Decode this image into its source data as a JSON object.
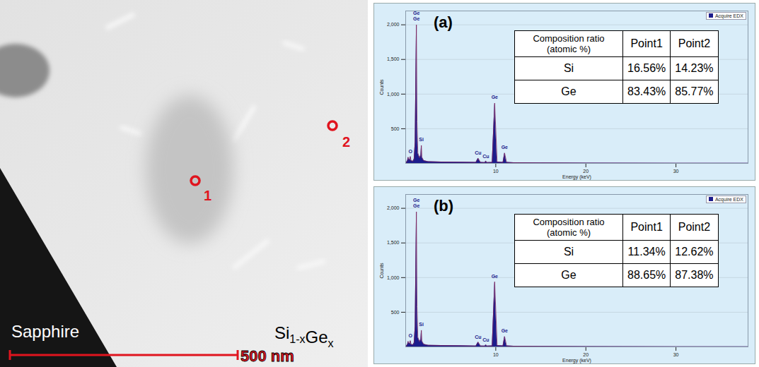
{
  "image": {
    "substrate_label": "Sapphire",
    "layer_label": [
      {
        "text": "Si",
        "sub": "1-x"
      },
      {
        "text": "Ge",
        "sub": "x"
      }
    ],
    "scale_bar": "500 nm",
    "points": [
      "1",
      "2"
    ]
  },
  "chart_data": [
    {
      "type": "area",
      "title": "(a)",
      "xlabel": "Energy (keV)",
      "ylabel": "Counts",
      "xlim": [
        0,
        38
      ],
      "xticks": [
        10,
        20,
        30
      ],
      "ylim": [
        0,
        2200
      ],
      "yticks": [
        500,
        1000,
        1500,
        2000
      ],
      "grid": true,
      "legend": "top-right",
      "x": [
        0,
        0.2,
        0.28,
        0.35,
        0.45,
        0.52,
        0.6,
        0.8,
        0.93,
        1.05,
        1.12,
        1.19,
        1.26,
        1.35,
        1.55,
        1.68,
        1.74,
        1.8,
        2.0,
        2.5,
        4,
        6,
        7.8,
        8.04,
        8.3,
        8.8,
        8.9,
        9.0,
        9.6,
        9.88,
        10.15,
        10.8,
        10.98,
        11.2,
        12,
        15,
        20,
        30,
        38
      ],
      "series": [
        {
          "name": "Acquire EDX",
          "color": "#1c1c8c",
          "values": [
            0,
            40,
            90,
            60,
            50,
            100,
            40,
            30,
            60,
            300,
            1200,
            2000,
            600,
            150,
            80,
            120,
            260,
            90,
            40,
            25,
            20,
            18,
            15,
            75,
            15,
            12,
            35,
            12,
            15,
            870,
            20,
            15,
            150,
            15,
            10,
            8,
            5,
            3,
            2
          ]
        }
      ],
      "annotations": [
        {
          "text": "Ge",
          "x": 1.19,
          "y": 2170
        },
        {
          "text": "Ge",
          "x": 1.19,
          "y": 2085
        },
        {
          "text": "Si",
          "x": 1.74,
          "y": 340
        },
        {
          "text": "O",
          "x": 0.52,
          "y": 170
        },
        {
          "text": "Cu",
          "x": 8.04,
          "y": 150
        },
        {
          "text": "Cu",
          "x": 8.9,
          "y": 100
        },
        {
          "text": "Ge",
          "x": 9.88,
          "y": 950
        },
        {
          "text": "Ge",
          "x": 10.98,
          "y": 230
        }
      ],
      "table": {
        "header": [
          "Composition ratio (atomic %)",
          "Point1",
          "Point2"
        ],
        "rows": [
          [
            "Si",
            "16.56%",
            "14.23%"
          ],
          [
            "Ge",
            "83.43%",
            "85.77%"
          ]
        ]
      }
    },
    {
      "type": "area",
      "title": "(b)",
      "xlabel": "Energy (keV)",
      "ylabel": "Counts",
      "xlim": [
        0,
        38
      ],
      "xticks": [
        10,
        20,
        30
      ],
      "ylim": [
        0,
        2200
      ],
      "yticks": [
        500,
        1000,
        1500,
        2000
      ],
      "grid": true,
      "legend": "top-right",
      "x": [
        0,
        0.2,
        0.28,
        0.35,
        0.45,
        0.52,
        0.6,
        0.8,
        0.93,
        1.05,
        1.12,
        1.19,
        1.26,
        1.35,
        1.55,
        1.68,
        1.74,
        1.8,
        2.0,
        2.5,
        4,
        6,
        7.8,
        8.04,
        8.3,
        8.8,
        8.9,
        9.0,
        9.6,
        9.88,
        10.15,
        10.8,
        10.98,
        11.2,
        12,
        15,
        20,
        30,
        38
      ],
      "series": [
        {
          "name": "Acquire EDX",
          "color": "#1c1c8c",
          "values": [
            0,
            35,
            80,
            55,
            45,
            90,
            35,
            30,
            55,
            290,
            1150,
            1950,
            580,
            140,
            75,
            110,
            240,
            85,
            38,
            24,
            20,
            17,
            14,
            70,
            14,
            12,
            30,
            12,
            15,
            940,
            20,
            15,
            150,
            15,
            10,
            8,
            5,
            3,
            2
          ]
        }
      ],
      "annotations": [
        {
          "text": "Ge",
          "x": 1.19,
          "y": 2120
        },
        {
          "text": "Ge",
          "x": 1.19,
          "y": 2035
        },
        {
          "text": "Si",
          "x": 1.74,
          "y": 320
        },
        {
          "text": "O",
          "x": 0.52,
          "y": 160
        },
        {
          "text": "Cu",
          "x": 8.04,
          "y": 145
        },
        {
          "text": "Cu",
          "x": 8.9,
          "y": 95
        },
        {
          "text": "Ge",
          "x": 9.88,
          "y": 1020
        },
        {
          "text": "Ge",
          "x": 10.98,
          "y": 230
        }
      ],
      "table": {
        "header": [
          "Composition ratio (atomic %)",
          "Point1",
          "Point2"
        ],
        "rows": [
          [
            "Si",
            "11.34%",
            "12.62%"
          ],
          [
            "Ge",
            "88.65%",
            "87.38%"
          ]
        ]
      }
    }
  ]
}
